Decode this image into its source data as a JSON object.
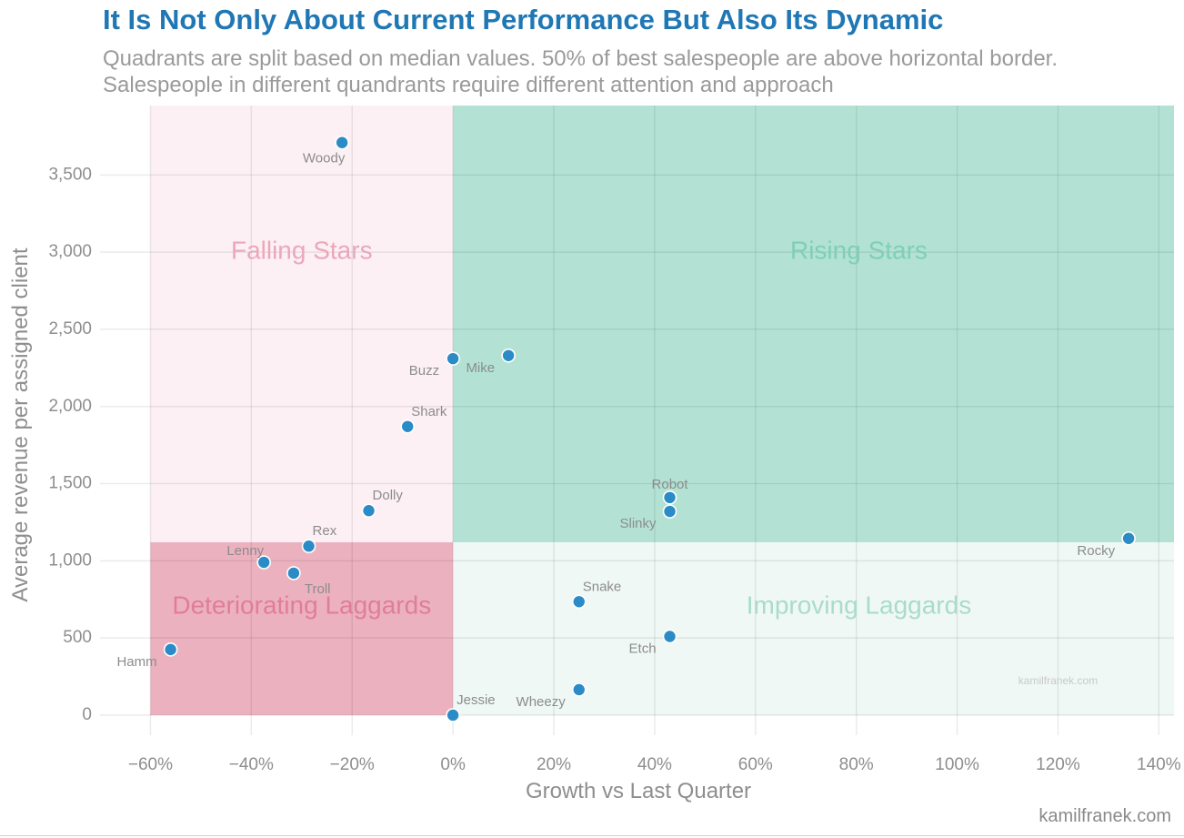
{
  "title": "It Is Not Only About Current Performance But Also Its Dynamic",
  "subtitle_line1": "Quadrants are split based on median values. 50% of best salespeople are above horizontal border.",
  "subtitle_line2": "Salespeople in different quandrants require different attention and approach",
  "credit": "kamilfranek.com",
  "chart_data": {
    "type": "scatter",
    "xlabel": "Growth vs Last Quarter",
    "ylabel": "Average revenue per assigned client",
    "xlim": [
      -0.7,
      1.43
    ],
    "ylim": [
      -130,
      3950
    ],
    "x_ticks": [
      -0.6,
      -0.4,
      -0.2,
      0,
      0.2,
      0.4,
      0.6,
      0.8,
      1.0,
      1.2,
      1.4
    ],
    "x_tick_labels": [
      "−60%",
      "−40%",
      "−20%",
      "0%",
      "20%",
      "40%",
      "60%",
      "80%",
      "100%",
      "120%",
      "140%"
    ],
    "y_ticks": [
      0,
      500,
      1000,
      1500,
      2000,
      2500,
      3000,
      3500
    ],
    "y_tick_labels": [
      "0",
      "500",
      "1,000",
      "1,500",
      "2,000",
      "2,500",
      "3,000",
      "3,500"
    ],
    "grid": true,
    "split": {
      "x": 0,
      "y": 1120
    },
    "quadrants": [
      {
        "label": "Falling Stars",
        "x0": -0.6,
        "x1": 0,
        "y0": 1120,
        "y1": 3950,
        "fill": "#fcf0f4",
        "text_color": "#eba7bb",
        "label_x": -0.3,
        "label_y": 3000
      },
      {
        "label": "Rising Stars",
        "x0": 0,
        "x1": 1.43,
        "y0": 1120,
        "y1": 3950,
        "fill": "#b3e2d4",
        "text_color": "#7fcfb5",
        "label_x": 0.805,
        "label_y": 3000
      },
      {
        "label": "Deteriorating Laggards",
        "x0": -0.6,
        "x1": 0,
        "y0": 0,
        "y1": 1120,
        "fill": "#ecb1bf",
        "text_color": "#e07d98",
        "label_x": -0.3,
        "label_y": 700
      },
      {
        "label": "Improving Laggards",
        "x0": 0,
        "x1": 1.43,
        "y0": 0,
        "y1": 1120,
        "fill": "#eff8f5",
        "text_color": "#a9dcc8",
        "label_x": 0.805,
        "label_y": 700
      }
    ],
    "watermark": {
      "text": "kamilfranek.com",
      "x": 1.2,
      "y": 200
    },
    "point_color": "#2b8bc6",
    "points": [
      {
        "name": "Woody",
        "x": -0.22,
        "y": 3710,
        "label_pos": "below"
      },
      {
        "name": "Buzz",
        "x": 0.0,
        "y": 2310,
        "label_pos": "below-left"
      },
      {
        "name": "Mike",
        "x": 0.11,
        "y": 2330,
        "label_pos": "below-left"
      },
      {
        "name": "Shark",
        "x": -0.09,
        "y": 1870,
        "label_pos": "above-right"
      },
      {
        "name": "Dolly",
        "x": -0.167,
        "y": 1325,
        "label_pos": "above-right"
      },
      {
        "name": "Rex",
        "x": -0.286,
        "y": 1095,
        "label_pos": "above-right"
      },
      {
        "name": "Lenny",
        "x": -0.375,
        "y": 990,
        "label_pos": "above-left"
      },
      {
        "name": "Troll",
        "x": -0.316,
        "y": 920,
        "label_pos": "below-right"
      },
      {
        "name": "Hamm",
        "x": -0.56,
        "y": 425,
        "label_pos": "below-left"
      },
      {
        "name": "Jessie",
        "x": 0.0,
        "y": 0,
        "label_pos": "above-right"
      },
      {
        "name": "Robot",
        "x": 0.43,
        "y": 1410,
        "label_pos": "above"
      },
      {
        "name": "Slinky",
        "x": 0.43,
        "y": 1320,
        "label_pos": "below-left"
      },
      {
        "name": "Snake",
        "x": 0.25,
        "y": 735,
        "label_pos": "above-right"
      },
      {
        "name": "Etch",
        "x": 0.43,
        "y": 510,
        "label_pos": "below-left"
      },
      {
        "name": "Wheezy",
        "x": 0.25,
        "y": 165,
        "label_pos": "below-left"
      },
      {
        "name": "Rocky",
        "x": 1.34,
        "y": 1145,
        "label_pos": "below-left"
      }
    ]
  }
}
